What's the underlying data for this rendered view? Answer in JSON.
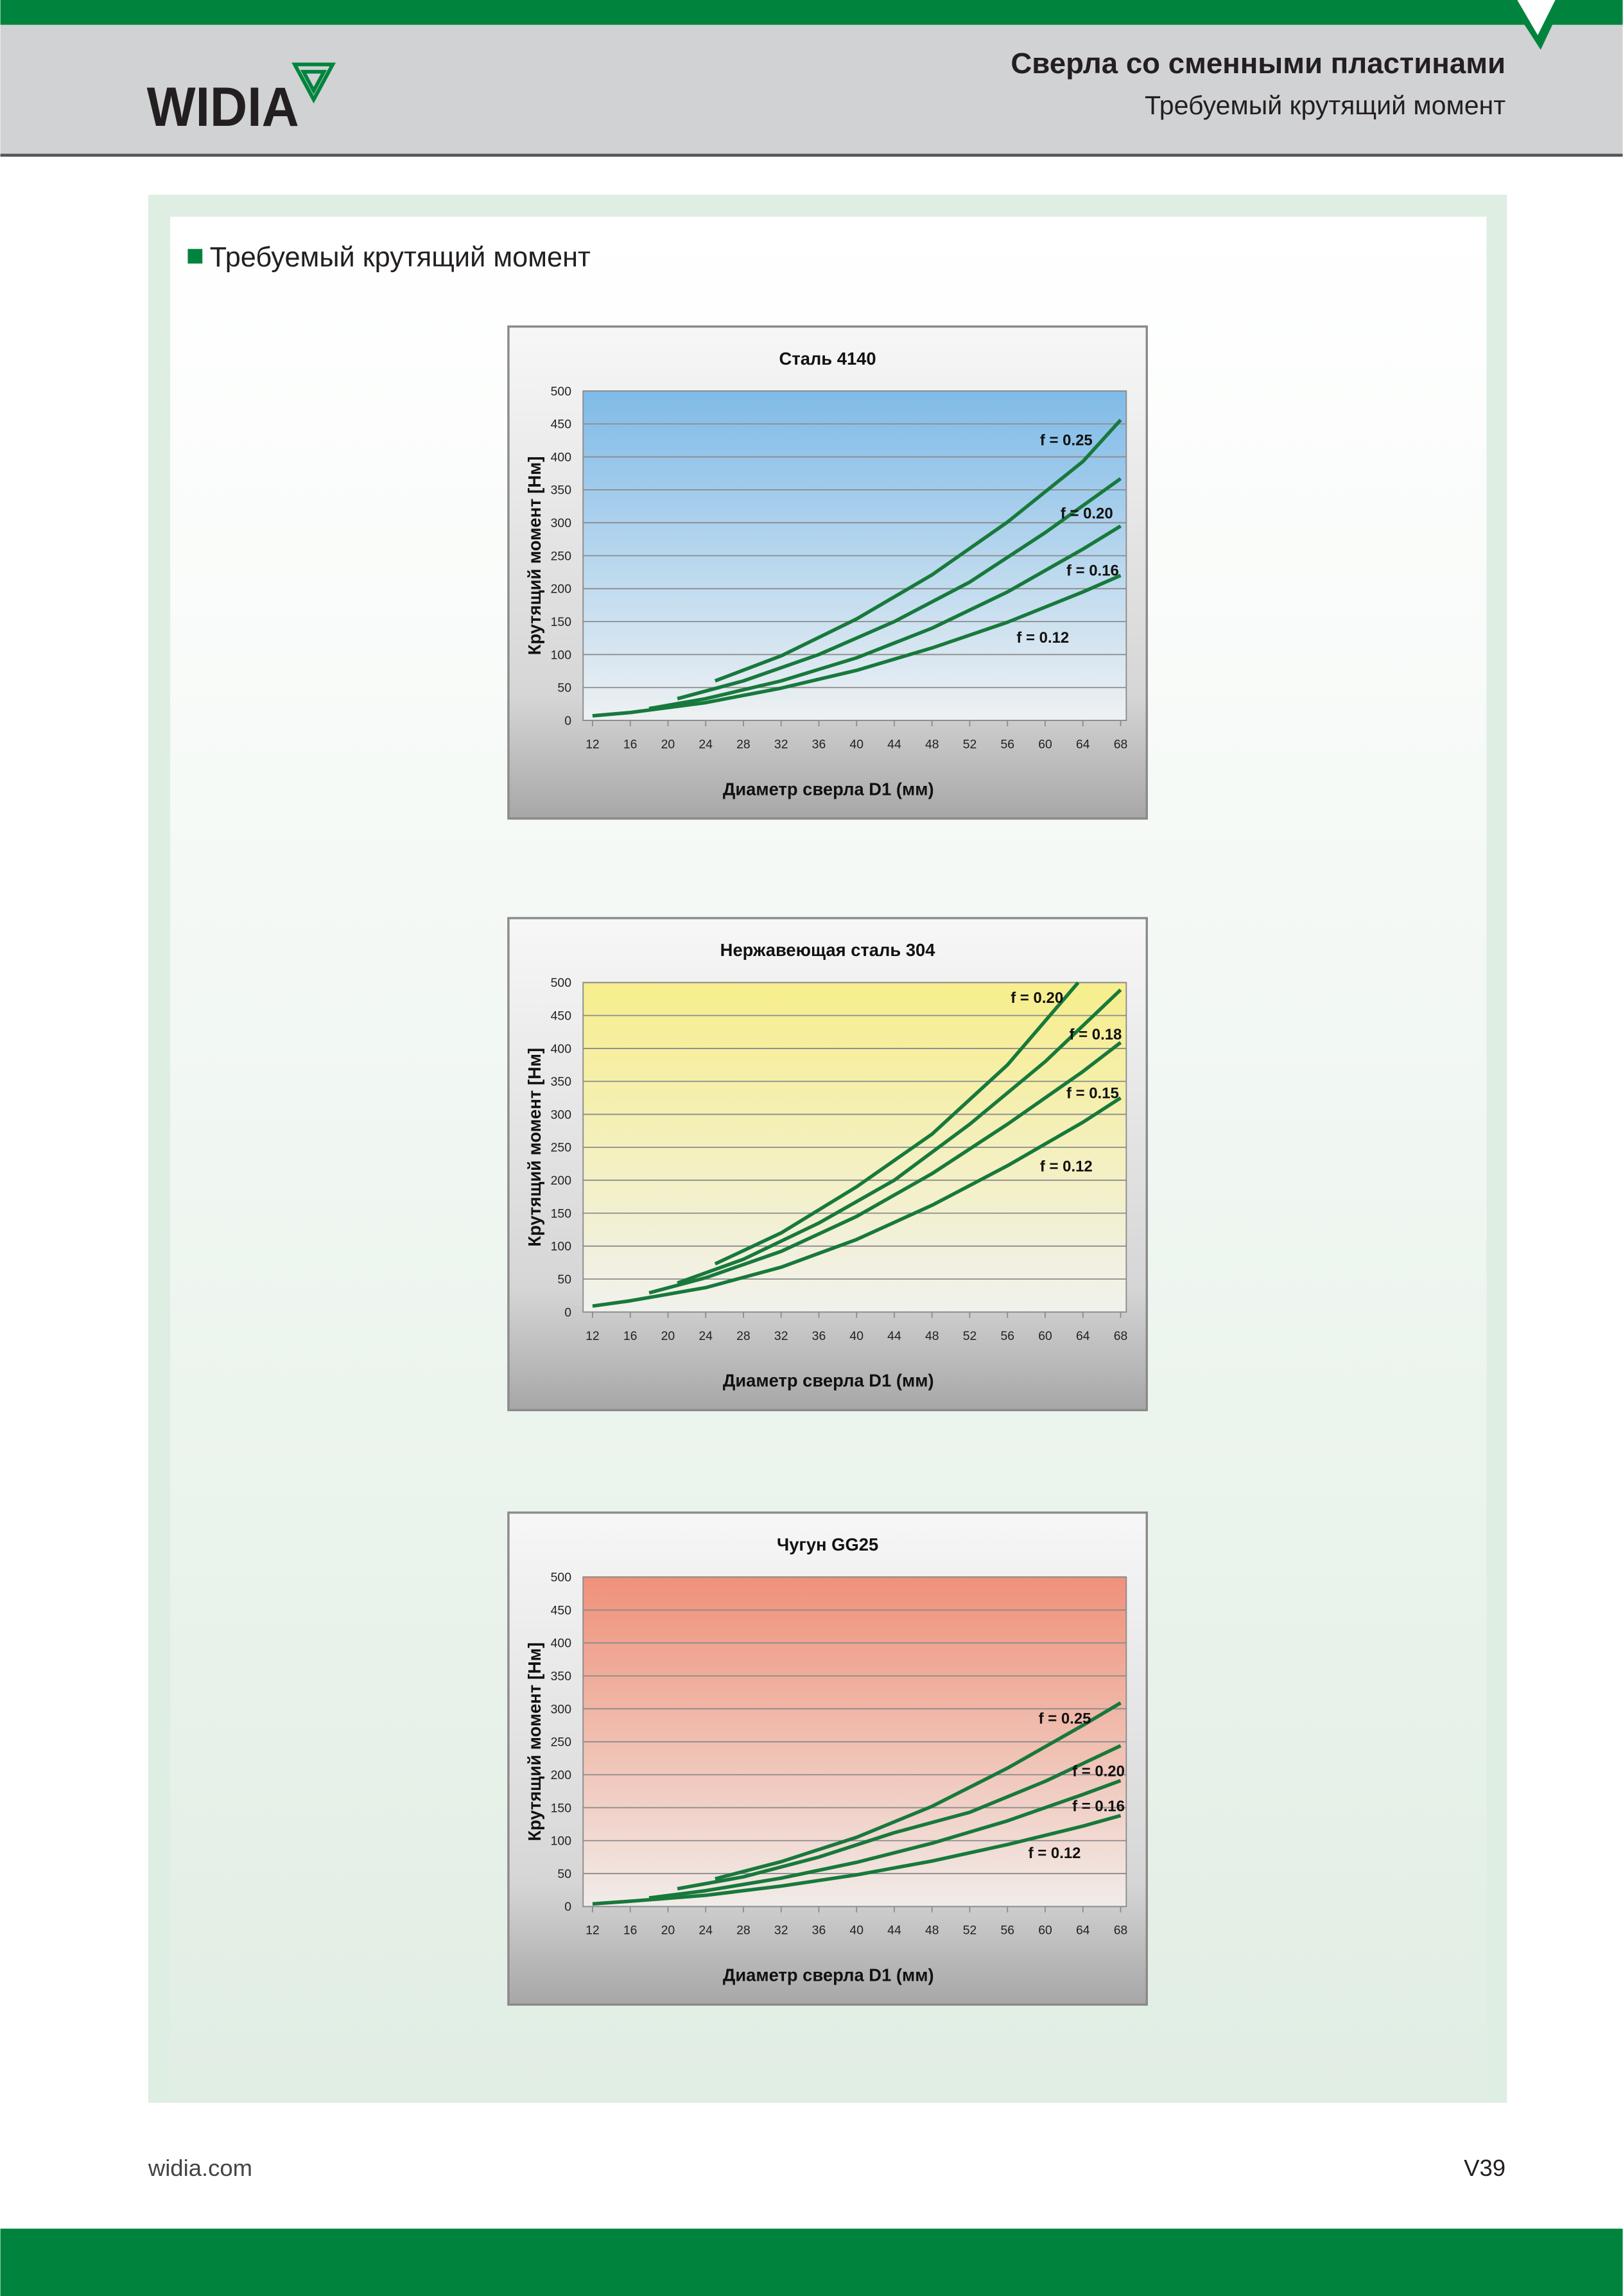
{
  "header": {
    "logo": "WIDIA",
    "title": "Сверла со сменными пластинами",
    "subtitle": "Требуемый крутящий момент"
  },
  "section_title": "Требуемый крутящий момент",
  "chart_data": [
    {
      "type": "line",
      "title": "Сталь 4140",
      "x_label": "Диаметр сверла D1 (мм)",
      "y_label": "Крутящий момент [Нм]",
      "xlim": [
        11,
        68.6
      ],
      "xticks": [
        12,
        16,
        20,
        24,
        28,
        32,
        36,
        40,
        44,
        48,
        52,
        56,
        60,
        64,
        68
      ],
      "ylim": [
        0,
        500
      ],
      "yticks": [
        0,
        50,
        100,
        150,
        200,
        250,
        300,
        350,
        400,
        450,
        500
      ],
      "grid": true,
      "background": [
        "#7fbbe8",
        "#eef1f3"
      ],
      "series": [
        {
          "name": "f = 0.25",
          "color": "#17793b",
          "x": [
            25,
            32,
            40,
            48,
            56,
            64,
            68
          ],
          "values": [
            60,
            98,
            154,
            221,
            301,
            393,
            456
          ]
        },
        {
          "name": "f = 0.20",
          "color": "#17793b",
          "x": [
            21,
            28,
            36,
            44,
            52,
            60,
            68
          ],
          "values": [
            33,
            60,
            100,
            150,
            210,
            285,
            367
          ]
        },
        {
          "name": "f = 0.16",
          "color": "#17793b",
          "x": [
            18,
            24,
            32,
            40,
            48,
            56,
            64,
            68
          ],
          "values": [
            18,
            33,
            60,
            95,
            140,
            195,
            260,
            295
          ]
        },
        {
          "name": "f = 0.12",
          "color": "#17793b",
          "x": [
            12,
            16,
            24,
            32,
            40,
            48,
            56,
            64,
            68
          ],
          "values": [
            7,
            12,
            27,
            49,
            76,
            110,
            149,
            195,
            220
          ]
        }
      ]
    },
    {
      "type": "line",
      "title": "Нержавеющая сталь 304",
      "x_label": "Диаметр сверла D1 (мм)",
      "y_label": "Крутящий момент [Нм]",
      "xlim": [
        11,
        68.6
      ],
      "xticks": [
        12,
        16,
        20,
        24,
        28,
        32,
        36,
        40,
        44,
        48,
        52,
        56,
        60,
        64,
        68
      ],
      "ylim": [
        0,
        500
      ],
      "yticks": [
        0,
        50,
        100,
        150,
        200,
        250,
        300,
        350,
        400,
        450,
        500
      ],
      "grid": true,
      "background": [
        "#f7ee8c",
        "#f1f1ee"
      ],
      "series": [
        {
          "name": "f = 0.20",
          "color": "#17793b",
          "x": [
            25,
            32,
            40,
            48,
            56,
            63.5
          ],
          "values": [
            73,
            120,
            190,
            270,
            375,
            500
          ]
        },
        {
          "name": "f = 0.18",
          "color": "#17793b",
          "x": [
            21,
            28,
            36,
            44,
            52,
            60,
            68
          ],
          "values": [
            44,
            80,
            135,
            200,
            285,
            380,
            489
          ]
        },
        {
          "name": "f = 0.15",
          "color": "#17793b",
          "x": [
            18,
            24,
            32,
            40,
            48,
            56,
            64,
            68
          ],
          "values": [
            29,
            52,
            92,
            145,
            210,
            285,
            365,
            409
          ]
        },
        {
          "name": "f = 0.12",
          "color": "#17793b",
          "x": [
            12,
            16,
            24,
            32,
            40,
            48,
            56,
            64,
            68
          ],
          "values": [
            9,
            17,
            37,
            68,
            110,
            162,
            222,
            288,
            325
          ]
        }
      ]
    },
    {
      "type": "line",
      "title": "Чугун GG25",
      "x_label": "Диаметр сверла D1 (мм)",
      "y_label": "Крутящий момент [Нм]",
      "xlim": [
        11,
        68.6
      ],
      "xticks": [
        12,
        16,
        20,
        24,
        28,
        32,
        36,
        40,
        44,
        48,
        52,
        56,
        60,
        64,
        68
      ],
      "ylim": [
        0,
        500
      ],
      "yticks": [
        0,
        50,
        100,
        150,
        200,
        250,
        300,
        350,
        400,
        450,
        500
      ],
      "grid": true,
      "background": [
        "#f0917a",
        "#f1ece9"
      ],
      "series": [
        {
          "name": "f = 0.25",
          "color": "#17793b",
          "x": [
            25,
            32,
            40,
            48,
            56,
            64,
            68
          ],
          "values": [
            42,
            68,
            105,
            152,
            210,
            275,
            309
          ]
        },
        {
          "name": "f = 0.20",
          "color": "#17793b",
          "x": [
            21,
            28,
            36,
            44,
            52,
            60,
            68
          ],
          "values": [
            27,
            45,
            75,
            112,
            143,
            190,
            244
          ]
        },
        {
          "name": "f = 0.16",
          "color": "#17793b",
          "x": [
            18,
            24,
            32,
            40,
            48,
            56,
            64,
            68
          ],
          "values": [
            13,
            24,
            43,
            67,
            96,
            130,
            170,
            191
          ]
        },
        {
          "name": "f = 0.12",
          "color": "#17793b",
          "x": [
            12,
            16,
            24,
            32,
            40,
            48,
            56,
            64,
            68
          ],
          "values": [
            4,
            8,
            17,
            31,
            48,
            69,
            94,
            122,
            138
          ]
        }
      ]
    }
  ],
  "footer": {
    "site": "widia.com",
    "page": "V39"
  }
}
